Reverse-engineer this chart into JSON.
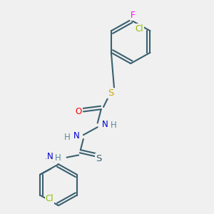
{
  "bg_color": "#f0f0f0",
  "bond_color": "#3a6070",
  "atom_colors": {
    "F": "#ff00ff",
    "Cl": "#8fbc00",
    "S": "#ccaa00",
    "O": "#ff0000",
    "N": "#0000cc",
    "H": "#5a8a99",
    "S2": "#3a6070"
  },
  "line_width": 1.5,
  "fig_size": [
    3.0,
    3.0
  ],
  "dpi": 100
}
